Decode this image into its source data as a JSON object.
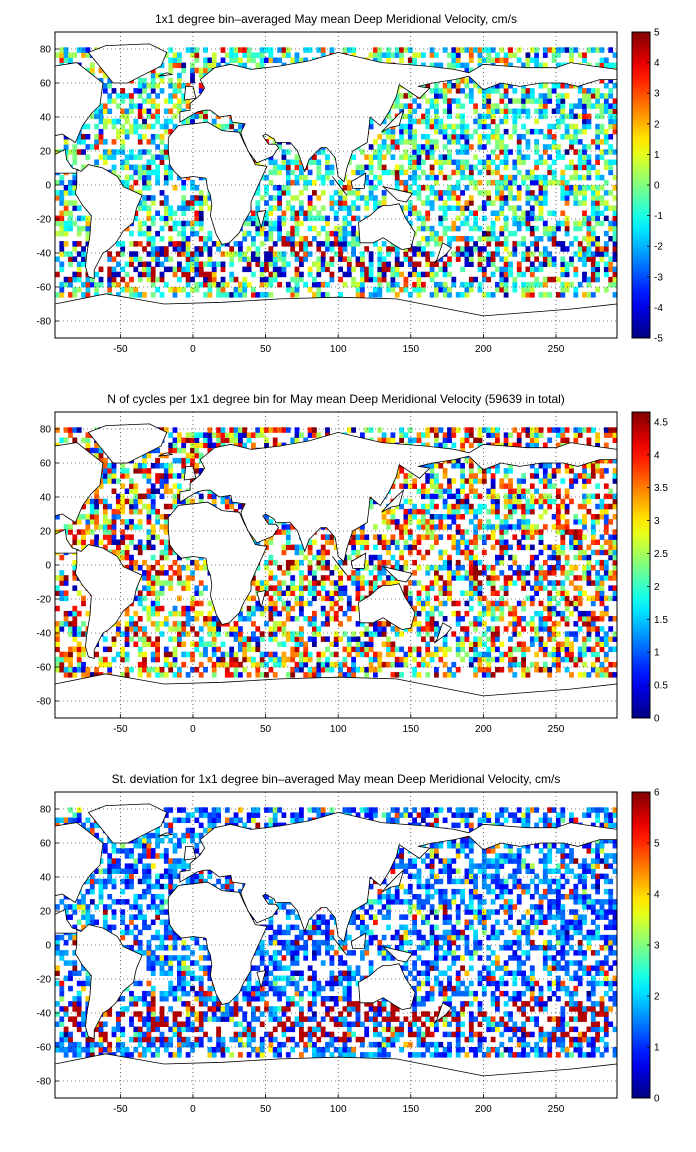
{
  "chart_data": [
    {
      "type": "heatmap",
      "title": "1x1 degree bin–averaged May mean Deep Meridional Velocity, cm/s",
      "xlim": [
        -95,
        292
      ],
      "ylim": [
        -90,
        90
      ],
      "xticks": [
        -50,
        0,
        50,
        100,
        150,
        200,
        250
      ],
      "yticks": [
        80,
        60,
        40,
        20,
        0,
        -20,
        -40,
        -60,
        -80
      ],
      "colorbar": {
        "min": -5,
        "max": 5,
        "ticks": [
          5,
          4,
          3,
          2,
          1,
          0,
          -1,
          -2,
          -3,
          -4,
          -5
        ],
        "colormap": "jet"
      },
      "grid": true,
      "overlay": "coastlines"
    },
    {
      "type": "heatmap",
      "title": "N of cycles per 1x1 degree bin for May mean Deep Meridional Velocity (59639 in total)",
      "xlim": [
        -95,
        292
      ],
      "ylim": [
        -90,
        90
      ],
      "xticks": [
        -50,
        0,
        50,
        100,
        150,
        200,
        250
      ],
      "yticks": [
        80,
        60,
        40,
        20,
        0,
        -20,
        -40,
        -60,
        -80
      ],
      "colorbar": {
        "min": 0,
        "max": 4.65,
        "ticks": [
          4.5,
          4,
          3.5,
          3,
          2.5,
          2,
          1.5,
          1,
          0.5,
          0
        ],
        "colormap": "jet"
      },
      "grid": true,
      "overlay": "coastlines"
    },
    {
      "type": "heatmap",
      "title": "St. deviation for 1x1 degree bin–averaged May mean Deep Meridional Velocity, cm/s",
      "xlim": [
        -95,
        292
      ],
      "ylim": [
        -90,
        90
      ],
      "xticks": [
        -50,
        0,
        50,
        100,
        150,
        200,
        250
      ],
      "yticks": [
        80,
        60,
        40,
        20,
        0,
        -20,
        -40,
        -60,
        -80
      ],
      "colorbar": {
        "min": 0,
        "max": 6,
        "ticks": [
          6,
          5,
          4,
          3,
          2,
          1,
          0
        ],
        "colormap": "jet"
      },
      "grid": true,
      "overlay": "coastlines"
    }
  ]
}
